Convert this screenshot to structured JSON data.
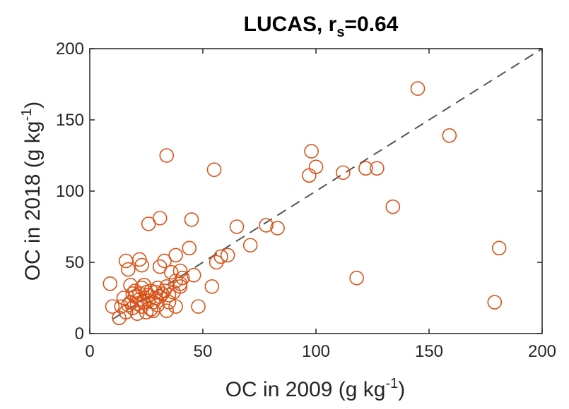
{
  "chart_data": {
    "type": "scatter",
    "title": "LUCAS, r",
    "title_sub": "s",
    "title_suffix": "=0.64",
    "xlabel": "OC in 2009 (g kg",
    "xlabel_sup": "-1",
    "xlabel_end": ")",
    "ylabel": "OC in 2018 (g kg",
    "ylabel_sup": "-1",
    "ylabel_end": ")",
    "xlim": [
      0,
      200
    ],
    "ylim": [
      0,
      200
    ],
    "xticks": [
      "0",
      "50",
      "100",
      "150",
      "200"
    ],
    "yticks": [
      "0",
      "50",
      "100",
      "150",
      "200"
    ],
    "grid": false,
    "reference_line": {
      "style": "dashed",
      "color": "#555555",
      "from": [
        10,
        10
      ],
      "to": [
        200,
        200
      ]
    },
    "marker": {
      "shape": "open-circle",
      "color": "#D95319"
    },
    "points": [
      [
        145,
        172
      ],
      [
        159,
        139
      ],
      [
        98,
        128
      ],
      [
        34,
        125
      ],
      [
        55,
        115
      ],
      [
        100,
        117
      ],
      [
        97,
        111
      ],
      [
        112,
        113
      ],
      [
        122,
        116
      ],
      [
        127,
        116
      ],
      [
        134,
        89
      ],
      [
        181,
        60
      ],
      [
        118,
        39
      ],
      [
        179,
        22
      ],
      [
        26,
        77
      ],
      [
        31,
        81
      ],
      [
        45,
        80
      ],
      [
        65,
        75
      ],
      [
        78,
        76
      ],
      [
        83,
        74
      ],
      [
        71,
        62
      ],
      [
        44,
        60
      ],
      [
        38,
        55
      ],
      [
        58,
        54
      ],
      [
        61,
        55
      ],
      [
        56,
        50
      ],
      [
        46,
        41
      ],
      [
        54,
        33
      ],
      [
        48,
        19
      ],
      [
        38,
        19
      ],
      [
        16,
        51
      ],
      [
        22,
        52
      ],
      [
        33,
        51
      ],
      [
        17,
        45
      ],
      [
        23,
        48
      ],
      [
        31,
        47
      ],
      [
        36,
        43
      ],
      [
        40,
        44
      ],
      [
        41,
        39
      ],
      [
        40,
        35
      ],
      [
        9,
        35
      ],
      [
        18,
        34
      ],
      [
        23,
        32
      ],
      [
        30,
        32
      ],
      [
        34,
        33
      ],
      [
        38,
        37
      ],
      [
        19,
        28
      ],
      [
        25,
        29
      ],
      [
        27,
        30
      ],
      [
        32,
        28
      ],
      [
        35,
        27
      ],
      [
        40,
        33
      ],
      [
        15,
        25
      ],
      [
        20,
        26
      ],
      [
        22,
        24
      ],
      [
        26,
        23
      ],
      [
        29,
        25
      ],
      [
        31,
        26
      ],
      [
        33,
        30
      ],
      [
        18,
        22
      ],
      [
        21,
        21
      ],
      [
        24,
        22
      ],
      [
        28,
        22
      ],
      [
        14,
        19
      ],
      [
        17,
        20
      ],
      [
        19,
        18
      ],
      [
        23,
        19
      ],
      [
        27,
        17
      ],
      [
        30,
        20
      ],
      [
        34,
        16
      ],
      [
        10,
        19
      ],
      [
        16,
        15
      ],
      [
        21,
        14
      ],
      [
        25,
        15
      ],
      [
        28,
        16
      ],
      [
        13,
        11
      ],
      [
        20,
        30
      ],
      [
        24,
        34
      ],
      [
        26,
        27
      ],
      [
        29,
        29
      ],
      [
        35,
        22
      ],
      [
        22,
        28
      ],
      [
        37,
        29
      ]
    ]
  }
}
